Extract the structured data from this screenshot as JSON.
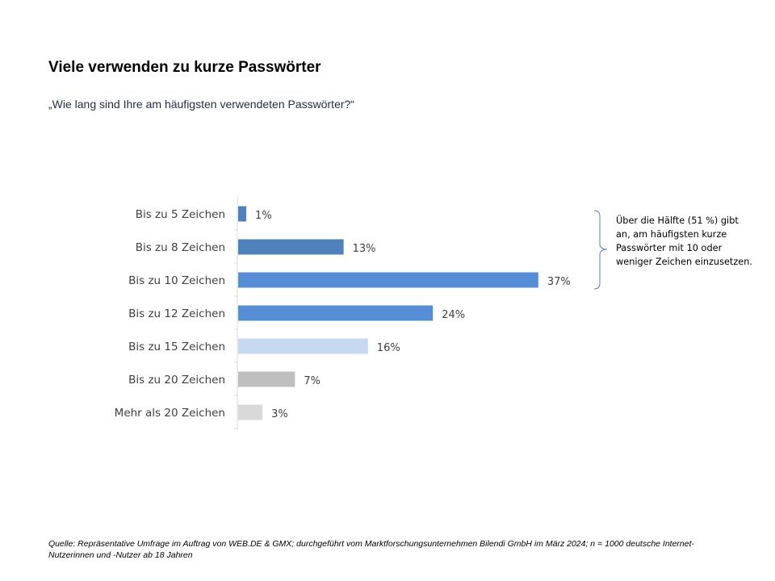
{
  "title": "Viele verwenden zu kurze Passwörter",
  "subtitle": "„Wie lang sind Ihre am häufigsten verwendeten Passwörter?“",
  "annotation": "Über die Hälfte (51 %) gibt an, am häufigsten kurze Passwörter mit 10 oder weniger Zeichen einzusetzen.",
  "source": "Quelle: Repräsentative Umfrage im Auftrag von WEB.DE & GMX; durchgeführt vom Marktforschungsunternehmen Bilendi GmbH im März 2024; n = 1000 deutsche Internet-Nutzerinnen und -Nutzer ab 18 Jahren",
  "chart_data": {
    "type": "bar",
    "orientation": "horizontal",
    "categories": [
      "Bis zu 5 Zeichen",
      "Bis zu 8 Zeichen",
      "Bis zu 10 Zeichen",
      "Bis zu 12 Zeichen",
      "Bis zu 15 Zeichen",
      "Bis zu 20 Zeichen",
      "Mehr als 20 Zeichen"
    ],
    "values": [
      1,
      13,
      37,
      24,
      16,
      7,
      3
    ],
    "labels": [
      "1%",
      "13%",
      "37%",
      "24%",
      "16%",
      "7%",
      "3%"
    ],
    "colors": [
      "#4f81bd",
      "#4f81bd",
      "#558ed5",
      "#558ed5",
      "#c6d9f1",
      "#bfbfbf",
      "#d9d9d9"
    ],
    "unit": "%",
    "grid": false,
    "bracket_color": "#4f81bd"
  }
}
